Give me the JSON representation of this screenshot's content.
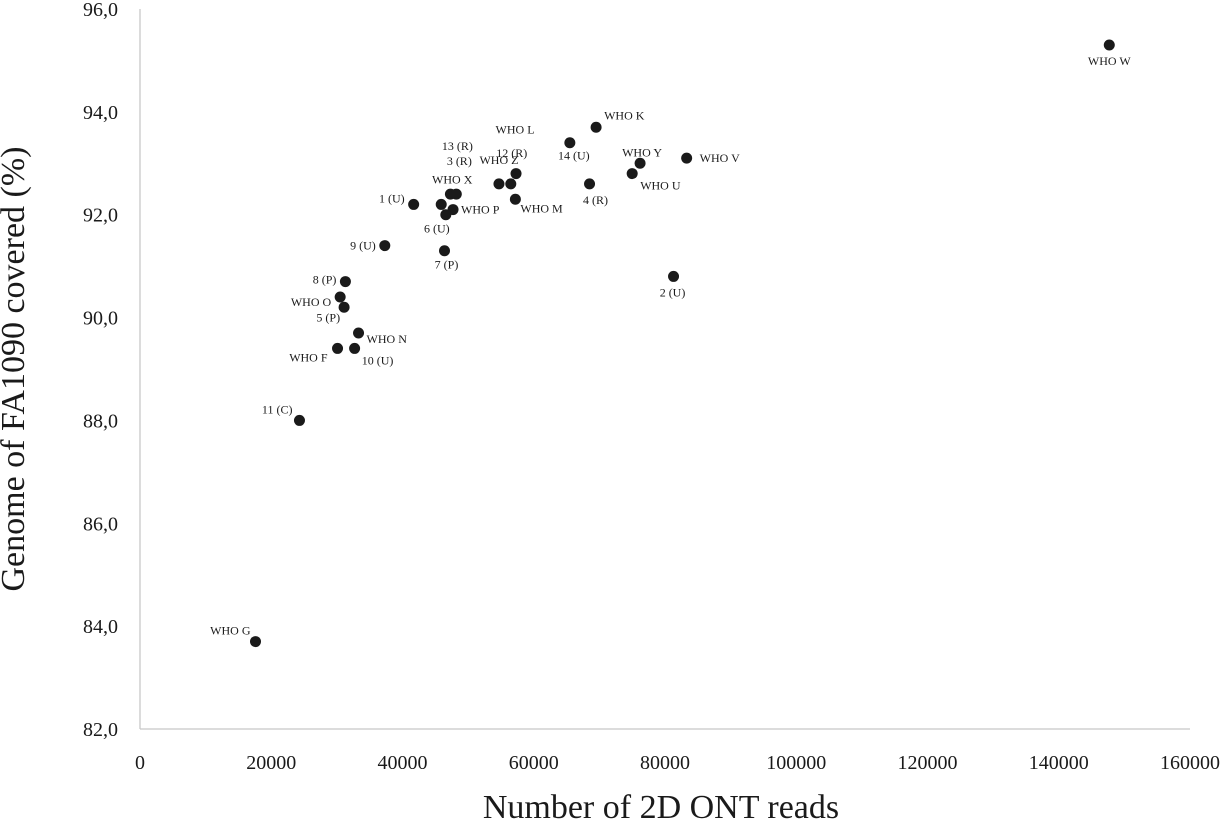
{
  "chart_data": {
    "type": "scatter",
    "title": "",
    "xlabel": "Number of 2D ONT reads",
    "ylabel": "Genome of FA1090 covered (%)",
    "xlim": [
      0,
      160000
    ],
    "ylim": [
      82,
      96
    ],
    "xticks": [
      "0",
      "20000",
      "40000",
      "60000",
      "80000",
      "100000",
      "120000",
      "140000",
      "160000"
    ],
    "yticks": [
      "82,0",
      "84,0",
      "86,0",
      "88,0",
      "90,0",
      "92,0",
      "94,0",
      "96,0"
    ],
    "grid": false,
    "legend": "none",
    "marker_color": "#1a1a1a",
    "points": [
      {
        "label": "WHO W",
        "x": 147700,
        "y": 95.3
      },
      {
        "label": "WHO K",
        "x": 69500,
        "y": 93.7
      },
      {
        "label": "14 (U)",
        "x": 65500,
        "y": 93.4
      },
      {
        "label": "WHO L",
        "x": 57300,
        "y": 92.8
      },
      {
        "label": "12 (R)",
        "x": 56500,
        "y": 92.6
      },
      {
        "label": "WHO Z",
        "x": 54700,
        "y": 92.6
      },
      {
        "label": "WHO M",
        "x": 57200,
        "y": 92.3
      },
      {
        "label": "WHO Y",
        "x": 76200,
        "y": 93.0
      },
      {
        "label": "WHO V",
        "x": 83300,
        "y": 93.1
      },
      {
        "label": "WHO U",
        "x": 75000,
        "y": 92.8
      },
      {
        "label": "4 (R)",
        "x": 68500,
        "y": 92.6
      },
      {
        "label": "13 (R)",
        "x": 47300,
        "y": 92.4
      },
      {
        "label": "3 (R)",
        "x": 48200,
        "y": 92.4
      },
      {
        "label": "WHO X",
        "x": 45900,
        "y": 92.2
      },
      {
        "label": "WHO P",
        "x": 47700,
        "y": 92.1
      },
      {
        "label": "6 (U)",
        "x": 46600,
        "y": 92.0
      },
      {
        "label": "1 (U)",
        "x": 41700,
        "y": 92.2
      },
      {
        "label": "7 (P)",
        "x": 46400,
        "y": 91.3
      },
      {
        "label": "9 (U)",
        "x": 37300,
        "y": 91.4
      },
      {
        "label": "2 (U)",
        "x": 81300,
        "y": 90.8
      },
      {
        "label": "8 (P)",
        "x": 31300,
        "y": 90.7
      },
      {
        "label": "WHO O",
        "x": 30500,
        "y": 90.4
      },
      {
        "label": "5 (P)",
        "x": 31100,
        "y": 90.2
      },
      {
        "label": "WHO N",
        "x": 33300,
        "y": 89.7
      },
      {
        "label": "WHO F",
        "x": 30100,
        "y": 89.4
      },
      {
        "label": "10 (U)",
        "x": 32700,
        "y": 89.4
      },
      {
        "label": "11 (C)",
        "x": 24300,
        "y": 88.0
      },
      {
        "label": "WHO G",
        "x": 17600,
        "y": 83.7
      }
    ]
  }
}
